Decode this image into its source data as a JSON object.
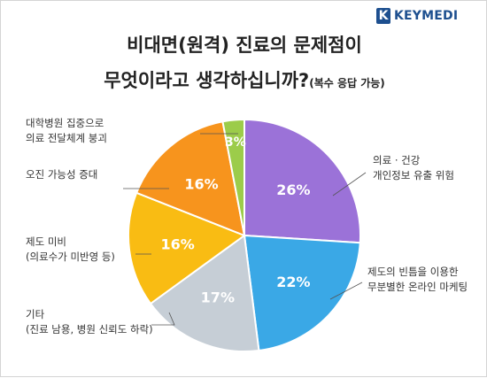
{
  "brand": {
    "mark": "K",
    "name": "KEYMEDI"
  },
  "title": {
    "line1": "비대면(원격) 진료의 문제점이",
    "line2": "무엇이라고 생각하십니까?",
    "note": "(복수 응답 가능)"
  },
  "colors": {
    "purple": "#9b72d8",
    "blue": "#3aa8e6",
    "gray": "#c6ced6",
    "yellow": "#f9bc13",
    "orange": "#f7941d",
    "green": "#9ccc4a"
  },
  "chart_data": {
    "type": "pie",
    "title": "비대면(원격) 진료의 문제점이 무엇이라고 생각하십니까?",
    "unit": "%",
    "slices": [
      {
        "label": [
          "의료 · 건강",
          "개인정보 유출 위험"
        ],
        "value": 26,
        "color": "#9b72d8",
        "text": "26%"
      },
      {
        "label": [
          "제도의 빈틈을 이용한",
          "무분별한 온라인 마케팅"
        ],
        "value": 22,
        "color": "#3aa8e6",
        "text": "22%"
      },
      {
        "label": [
          "기타",
          "(진료 남용, 병원 신뢰도 하락)"
        ],
        "value": 17,
        "color": "#c6ced6",
        "text": "17%"
      },
      {
        "label": [
          "제도 미비",
          "(의료수가 미반영 등)"
        ],
        "value": 16,
        "color": "#f9bc13",
        "text": "16%"
      },
      {
        "label": [
          "오진 가능성 증대"
        ],
        "value": 16,
        "color": "#f7941d",
        "text": "16%"
      },
      {
        "label": [
          "대학병원 집중으로",
          "의료 전달체계 붕괴"
        ],
        "value": 3,
        "color": "#9ccc4a",
        "text": "3%"
      }
    ]
  }
}
